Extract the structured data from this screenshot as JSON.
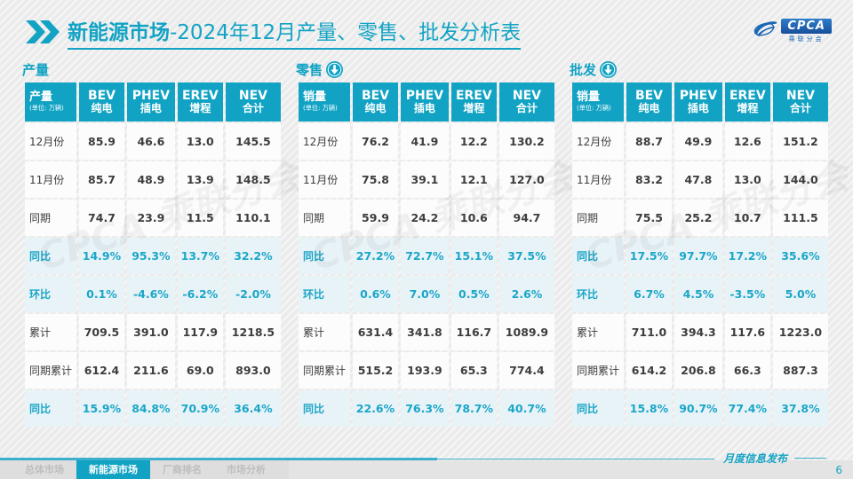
{
  "colors": {
    "accent": "#12a3c4",
    "accent_line": "#3bafcb",
    "highlight_row_bg": "#e8f3f8",
    "highlight_text": "#1ba6c7",
    "logo_blue": "#1a67b5",
    "body_text": "#3d3d3d",
    "inactive_tab_text": "#bdbdbd"
  },
  "header": {
    "title_emphasis": "新能源市场",
    "title_rest": "-2024年12月产量、零售、批发分析表",
    "logo_text": "CPCA",
    "logo_subtext": "乘联分会"
  },
  "columns": [
    {
      "en": "BEV",
      "cn": "纯电"
    },
    {
      "en": "PHEV",
      "cn": "插电"
    },
    {
      "en": "EREV",
      "cn": "增程"
    },
    {
      "en": "NEV",
      "cn": "合计"
    }
  ],
  "watermark": "CPCA 乘联分会",
  "tables": [
    {
      "section_label": "产量",
      "has_arrow": false,
      "corner_title": "产量",
      "corner_unit": "(单位: 万辆)",
      "rows": [
        {
          "label": "12月份",
          "highlight": false,
          "values": [
            "85.9",
            "46.6",
            "13.0",
            "145.5"
          ]
        },
        {
          "label": "11月份",
          "highlight": false,
          "values": [
            "85.7",
            "48.9",
            "13.9",
            "148.5"
          ]
        },
        {
          "label": "同期",
          "highlight": false,
          "values": [
            "74.7",
            "23.9",
            "11.5",
            "110.1"
          ]
        },
        {
          "label": "同比",
          "highlight": true,
          "values": [
            "14.9%",
            "95.3%",
            "13.7%",
            "32.2%"
          ]
        },
        {
          "label": "环比",
          "highlight": true,
          "values": [
            "0.1%",
            "-4.6%",
            "-6.2%",
            "-2.0%"
          ]
        },
        {
          "label": "累计",
          "highlight": false,
          "values": [
            "709.5",
            "391.0",
            "117.9",
            "1218.5"
          ]
        },
        {
          "label": "同期累计",
          "highlight": false,
          "values": [
            "612.4",
            "211.6",
            "69.0",
            "893.0"
          ]
        },
        {
          "label": "同比",
          "highlight": true,
          "values": [
            "15.9%",
            "84.8%",
            "70.9%",
            "36.4%"
          ]
        }
      ]
    },
    {
      "section_label": "零售",
      "has_arrow": true,
      "corner_title": "销量",
      "corner_unit": "(单位: 万辆)",
      "rows": [
        {
          "label": "12月份",
          "highlight": false,
          "values": [
            "76.2",
            "41.9",
            "12.2",
            "130.2"
          ]
        },
        {
          "label": "11月份",
          "highlight": false,
          "values": [
            "75.8",
            "39.1",
            "12.1",
            "127.0"
          ]
        },
        {
          "label": "同期",
          "highlight": false,
          "values": [
            "59.9",
            "24.2",
            "10.6",
            "94.7"
          ]
        },
        {
          "label": "同比",
          "highlight": true,
          "values": [
            "27.2%",
            "72.7%",
            "15.1%",
            "37.5%"
          ]
        },
        {
          "label": "环比",
          "highlight": true,
          "values": [
            "0.6%",
            "7.0%",
            "0.5%",
            "2.6%"
          ]
        },
        {
          "label": "累计",
          "highlight": false,
          "values": [
            "631.4",
            "341.8",
            "116.7",
            "1089.9"
          ]
        },
        {
          "label": "同期累计",
          "highlight": false,
          "values": [
            "515.2",
            "193.9",
            "65.3",
            "774.4"
          ]
        },
        {
          "label": "同比",
          "highlight": true,
          "values": [
            "22.6%",
            "76.3%",
            "78.7%",
            "40.7%"
          ]
        }
      ]
    },
    {
      "section_label": "批发",
      "has_arrow": true,
      "corner_title": "销量",
      "corner_unit": "(单位: 万辆)",
      "rows": [
        {
          "label": "12月份",
          "highlight": false,
          "values": [
            "88.7",
            "49.9",
            "12.6",
            "151.2"
          ]
        },
        {
          "label": "11月份",
          "highlight": false,
          "values": [
            "83.2",
            "47.8",
            "13.0",
            "144.0"
          ]
        },
        {
          "label": "同期",
          "highlight": false,
          "values": [
            "75.5",
            "25.2",
            "10.7",
            "111.5"
          ]
        },
        {
          "label": "同比",
          "highlight": true,
          "values": [
            "17.5%",
            "97.7%",
            "17.2%",
            "35.6%"
          ]
        },
        {
          "label": "环比",
          "highlight": true,
          "values": [
            "6.7%",
            "4.5%",
            "-3.5%",
            "5.0%"
          ]
        },
        {
          "label": "累计",
          "highlight": false,
          "values": [
            "711.0",
            "394.3",
            "117.6",
            "1223.0"
          ]
        },
        {
          "label": "同期累计",
          "highlight": false,
          "values": [
            "614.2",
            "206.8",
            "66.3",
            "887.3"
          ]
        },
        {
          "label": "同比",
          "highlight": true,
          "values": [
            "15.8%",
            "90.7%",
            "77.4%",
            "37.8%"
          ]
        }
      ]
    }
  ],
  "footer": {
    "tabs": [
      {
        "label": "总体市场",
        "active": false
      },
      {
        "label": "新能源市场",
        "active": true
      },
      {
        "label": "厂商排名",
        "active": false
      },
      {
        "label": "市场分析",
        "active": false
      }
    ],
    "publication": "月度信息发布",
    "page": "6"
  }
}
